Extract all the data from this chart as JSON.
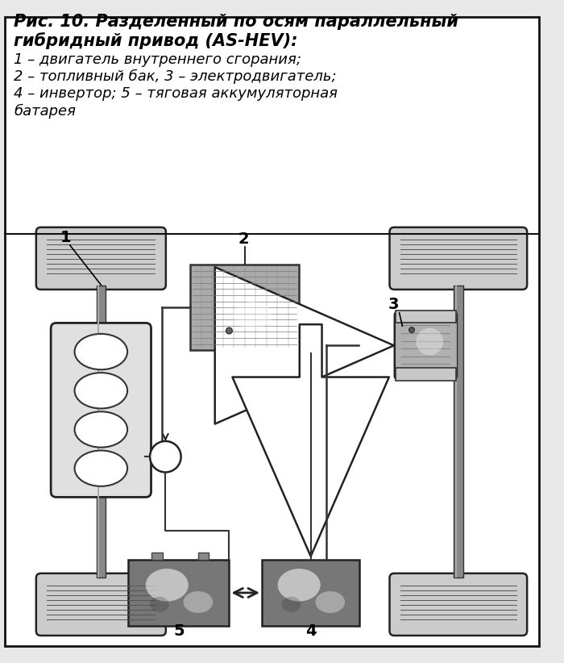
{
  "title_line1": "Рис. 10. Разделенный по осям параллельный",
  "title_line2": "гибридный привод (AS-HEV):",
  "desc_line1": "1 – двигатель внутреннего сгорания;",
  "desc_line2": "2 – топливный бак, 3 – электродвигатель;",
  "desc_line3": "4 – инвертор; 5 – тяговая аккумуляторная",
  "desc_line4": "батарея",
  "bg_color": "#e8e8e8",
  "white": "#ffffff",
  "border_color": "#111111",
  "tire_color": "#cccccc",
  "engine_color": "#e0e0e0",
  "battery_color": "#888888",
  "fuel_color": "#aaaaaa",
  "motor_color": "#b0b0b0",
  "arrow_color": "#333333",
  "line_color": "#333333",
  "label_fs": 14
}
